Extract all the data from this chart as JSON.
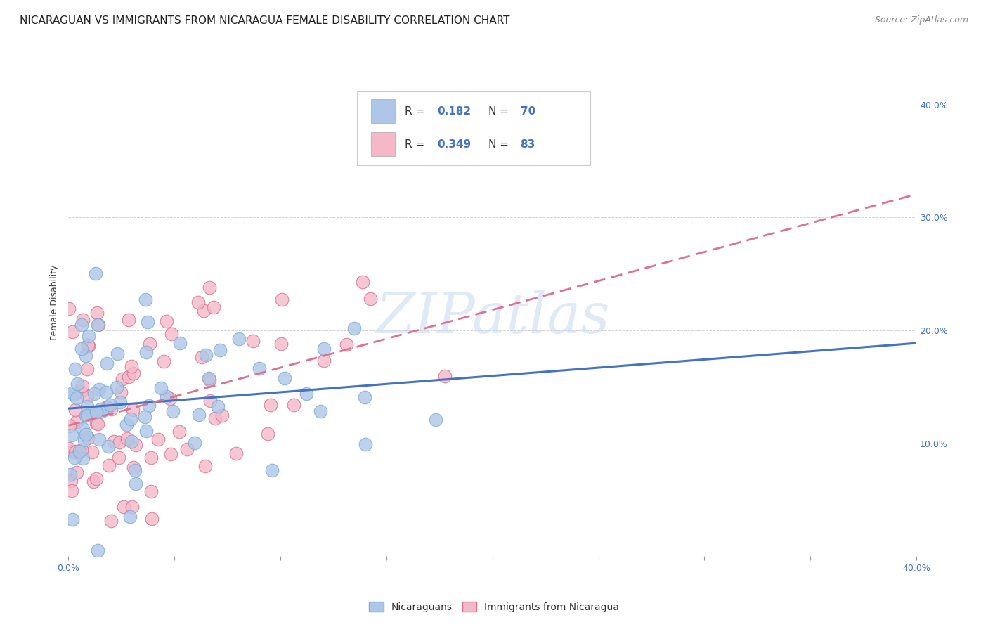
{
  "title": "NICARAGUAN VS IMMIGRANTS FROM NICARAGUA FEMALE DISABILITY CORRELATION CHART",
  "source": "Source: ZipAtlas.com",
  "ylabel": "Female Disability",
  "xlim": [
    0.0,
    0.4
  ],
  "ylim": [
    0.0,
    0.45
  ],
  "ytick_labels": [
    "10.0%",
    "20.0%",
    "30.0%",
    "40.0%"
  ],
  "ytick_vals": [
    0.1,
    0.2,
    0.3,
    0.4
  ],
  "xtick_vals": [
    0.0,
    0.05,
    0.1,
    0.15,
    0.2,
    0.25,
    0.3,
    0.35,
    0.4
  ],
  "legend_text_color": "#4472c4",
  "legend_label_color": "#333333",
  "series1_color": "#aec6e8",
  "series1_edge": "#7aaad4",
  "series1_line_color": "#4472c4",
  "series2_color": "#f4b8c8",
  "series2_edge": "#d47090",
  "series2_line_color": "#e07090",
  "watermark": "ZIPatlas",
  "watermark_color": "#c8d8f0",
  "background_color": "#ffffff",
  "R1": 0.182,
  "N1": 70,
  "R2": 0.349,
  "N2": 83,
  "seed1": 42,
  "seed2": 99,
  "title_fontsize": 11,
  "axis_label_fontsize": 9,
  "tick_fontsize": 9,
  "legend_fontsize": 11
}
